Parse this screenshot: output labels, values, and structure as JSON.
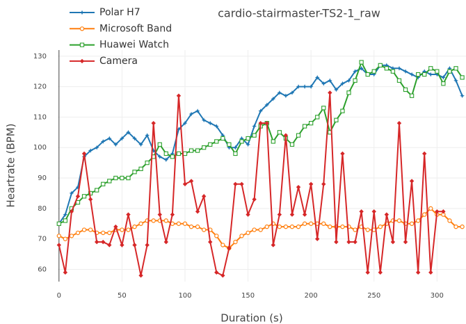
{
  "chart_data": {
    "type": "line",
    "title": "cardio-stairmaster-TS2-1_raw",
    "x_label": "Duration (s)",
    "y_label": "Heartrate (BPM)",
    "x": [
      0,
      5,
      10,
      15,
      20,
      25,
      30,
      35,
      40,
      45,
      50,
      55,
      60,
      65,
      70,
      75,
      80,
      85,
      90,
      95,
      100,
      105,
      110,
      115,
      120,
      125,
      130,
      135,
      140,
      145,
      150,
      155,
      160,
      165,
      170,
      175,
      180,
      185,
      190,
      195,
      200,
      205,
      210,
      215,
      220,
      225,
      230,
      235,
      240,
      245,
      250,
      255,
      260,
      265,
      270,
      275,
      280,
      285,
      290,
      295,
      300,
      305,
      310,
      315,
      320
    ],
    "series": [
      {
        "name": "Polar H7",
        "color": "#1f77b4",
        "marker": "star",
        "values": [
          75,
          78,
          85,
          87,
          97,
          99,
          100,
          102,
          103,
          101,
          103,
          105,
          103,
          101,
          104,
          99,
          97,
          96,
          98,
          106,
          108,
          111,
          112,
          109,
          108,
          107,
          104,
          100,
          100,
          103,
          101,
          107,
          112,
          114,
          116,
          118,
          117,
          118,
          120,
          120,
          120,
          123,
          121,
          122,
          119,
          121,
          122,
          125,
          126,
          124,
          124,
          127,
          127,
          126,
          126,
          125,
          124,
          123,
          125,
          124,
          124,
          123,
          126,
          122,
          117
        ]
      },
      {
        "name": "Microsoft Band",
        "color": "#ff7f0e",
        "marker": "circle",
        "values": [
          71,
          70,
          71,
          72,
          73,
          73,
          72,
          72,
          72,
          73,
          73,
          73,
          74,
          75,
          76,
          76,
          76,
          76,
          75,
          75,
          75,
          74,
          74,
          73,
          73,
          71,
          68,
          67,
          69,
          71,
          72,
          73,
          73,
          74,
          75,
          74,
          74,
          74,
          74,
          75,
          75,
          75,
          75,
          74,
          74,
          74,
          74,
          73,
          74,
          73,
          73,
          74,
          75,
          76,
          76,
          75,
          75,
          76,
          78,
          80,
          78,
          78,
          76,
          74,
          74
        ]
      },
      {
        "name": "Huawei Watch",
        "color": "#2ca02c",
        "marker": "square",
        "values": [
          75,
          76,
          80,
          82,
          84,
          85,
          86,
          88,
          89,
          90,
          90,
          90,
          92,
          93,
          95,
          97,
          101,
          98,
          97,
          98,
          98,
          99,
          99,
          100,
          101,
          102,
          103,
          101,
          98,
          102,
          103,
          104,
          107,
          108,
          102,
          105,
          103,
          101,
          104,
          107,
          108,
          110,
          113,
          105,
          109,
          112,
          118,
          122,
          128,
          124,
          125,
          127,
          126,
          125,
          122,
          119,
          117,
          124,
          124,
          126,
          125,
          121,
          125,
          126,
          123
        ]
      },
      {
        "name": "Camera",
        "color": "#d62728",
        "marker": "diamond",
        "values": [
          68,
          59,
          79,
          84,
          98,
          83,
          69,
          69,
          68,
          74,
          68,
          78,
          68,
          58,
          68,
          108,
          78,
          69,
          78,
          117,
          88,
          89,
          79,
          84,
          69,
          59,
          58,
          67,
          88,
          88,
          78,
          83,
          108,
          108,
          68,
          78,
          104,
          78,
          87,
          78,
          88,
          70,
          88,
          118,
          69,
          98,
          69,
          69,
          79,
          59,
          79,
          59,
          78,
          69,
          108,
          69,
          89,
          59,
          98,
          59,
          79,
          79,
          null,
          null,
          null
        ]
      }
    ],
    "xlim": [
      -1,
      323
    ],
    "ylim": [
      56,
      132
    ],
    "xticks": [
      0,
      50,
      100,
      150,
      200,
      250,
      300
    ],
    "yticks": [
      60,
      70,
      80,
      90,
      100,
      110,
      120,
      130
    ],
    "grid": true
  }
}
